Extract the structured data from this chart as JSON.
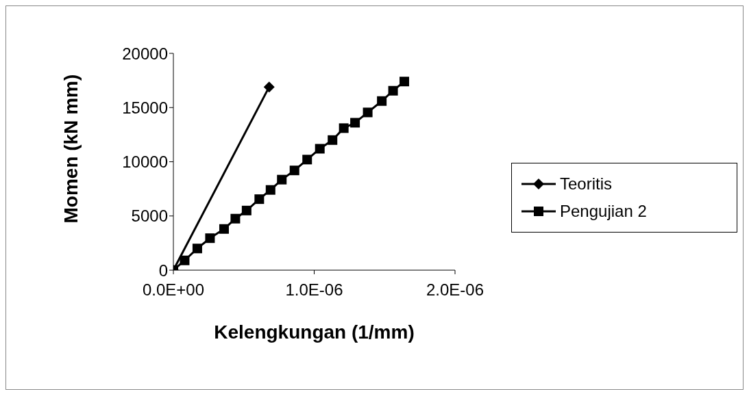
{
  "chart_data": {
    "type": "line",
    "xlabel": "Kelengkungan (1/mm)",
    "ylabel": "Momen (kN mm)",
    "xlim": [
      0,
      2e-06
    ],
    "xticks": [
      {
        "value": 0,
        "label": "0.0E+00"
      },
      {
        "value": 1e-06,
        "label": "1.0E-06"
      },
      {
        "value": 2e-06,
        "label": "2.0E-06"
      }
    ],
    "ylim": [
      0,
      20000
    ],
    "yticks": [
      0,
      5000,
      10000,
      15000,
      20000
    ],
    "legend": "right",
    "series": [
      {
        "name": "Teoritis",
        "color": "#000000",
        "marker": "diamond",
        "x": [
          0,
          6.8e-07
        ],
        "values": [
          0,
          16900
        ]
      },
      {
        "name": "Pengujian 2",
        "color": "#000000",
        "marker": "square",
        "x": [
          0,
          8e-08,
          1.7e-07,
          2.6e-07,
          3.6e-07,
          4.4e-07,
          5.2e-07,
          6.1e-07,
          6.9e-07,
          7.7e-07,
          8.6e-07,
          9.5e-07,
          1.04e-06,
          1.13e-06,
          1.21e-06,
          1.29e-06,
          1.38e-06,
          1.48e-06,
          1.56e-06,
          1.64e-06
        ],
        "values": [
          0,
          900,
          2000,
          2950,
          3800,
          4750,
          5500,
          6550,
          7400,
          8350,
          9200,
          10200,
          11200,
          12000,
          13100,
          13600,
          14550,
          15600,
          16550,
          17400
        ]
      }
    ]
  }
}
